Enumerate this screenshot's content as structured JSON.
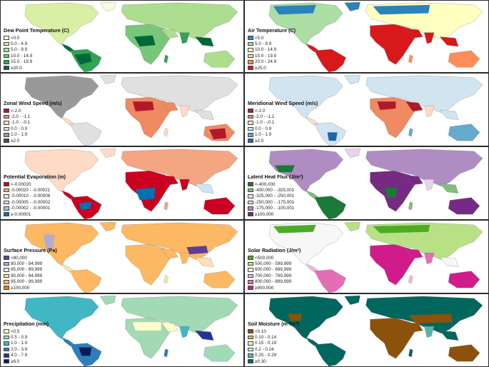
{
  "panels": [
    {
      "id": "dew-point",
      "title": "Dew Point Temperature (C)",
      "classes": [
        {
          "label": "<0.0",
          "color": "#f7fcd9"
        },
        {
          "label": "0.0 - 4.9",
          "color": "#d9efa3"
        },
        {
          "label": "5.0 - 9.9",
          "color": "#addd8e"
        },
        {
          "label": "10.0 - 14.9",
          "color": "#78c679"
        },
        {
          "label": "15.0 - 19.9",
          "color": "#31a354"
        },
        {
          "label": "≥20.0",
          "color": "#006837"
        }
      ]
    },
    {
      "id": "air-temperature",
      "title": "Air Temperature (C)",
      "classes": [
        {
          "label": "<5.0",
          "color": "#2b83ba"
        },
        {
          "label": "5.0 - 9.9",
          "color": "#abdda4"
        },
        {
          "label": "10.0 - 14.9",
          "color": "#ffffbf"
        },
        {
          "label": "15.0 - 19.9",
          "color": "#fee08b"
        },
        {
          "label": "20.0 - 24.9",
          "color": "#fc8d59"
        },
        {
          "label": "≥25.0",
          "color": "#d7191c"
        }
      ]
    },
    {
      "id": "zonal-wind",
      "title": "Zonal Wind Speed (m/s)",
      "classes": [
        {
          "label": "<-2.0",
          "color": "#b2182b"
        },
        {
          "label": "-2.0 - -1.1",
          "color": "#ef8a62"
        },
        {
          "label": "-1.0 - -0.1",
          "color": "#fddbc7"
        },
        {
          "label": "0.0 - 0.9",
          "color": "#e0e0e0"
        },
        {
          "label": "1.0 - 1.9",
          "color": "#999999"
        },
        {
          "label": "≥2.0",
          "color": "#4d4d4d"
        }
      ]
    },
    {
      "id": "meridional-wind",
      "title": "Meridional Wind Speed (m/s)",
      "classes": [
        {
          "label": "<-2.0",
          "color": "#b2182b"
        },
        {
          "label": "-2.0 - -1.1",
          "color": "#ef8a62"
        },
        {
          "label": "-1.0 - -0.1",
          "color": "#fddbc7"
        },
        {
          "label": "0.0 - 0.9",
          "color": "#d1e5f0"
        },
        {
          "label": "1.0 - 1.9",
          "color": "#67a9cf"
        },
        {
          "label": "≥2.0",
          "color": "#2166ac"
        }
      ]
    },
    {
      "id": "potential-evaporation",
      "title": "Potential Evaporation (m)",
      "classes": [
        {
          "label": "<-0.00020",
          "color": "#ca0020"
        },
        {
          "label": "-0.00020 - -0.00021",
          "color": "#f4a582"
        },
        {
          "label": "-0.00010 - -0.00006",
          "color": "#fddbc7"
        },
        {
          "label": "-0.00005 - -0.00002",
          "color": "#d1e5f0"
        },
        {
          "label": "-0.00002 - -0.00001",
          "color": "#92c5de"
        },
        {
          "label": "≥-0.00001",
          "color": "#0571b0"
        }
      ]
    },
    {
      "id": "latent-heat-flux",
      "title": "Latent Heat Flux (J/m²)",
      "classes": [
        {
          "label": "<-400,000",
          "color": "#1b7837"
        },
        {
          "label": "-400,000 - -325,001",
          "color": "#7fbf7b"
        },
        {
          "label": "-325,000 - -250,001",
          "color": "#d9f0d3"
        },
        {
          "label": "-250,000 - -175,001",
          "color": "#e7d4e8"
        },
        {
          "label": "-175,000 - -100,001",
          "color": "#af8dc3"
        },
        {
          "label": "≥100,000",
          "color": "#762a83"
        }
      ]
    },
    {
      "id": "surface-pressure",
      "title": "Surface Pressure (Pa)",
      "classes": [
        {
          "label": "<80,000",
          "color": "#5e3c99"
        },
        {
          "label": "80,000 - 84,999",
          "color": "#b2abd2"
        },
        {
          "label": "85,000 - 89,999",
          "color": "#e8e4f2"
        },
        {
          "label": "90,000 - 94,999",
          "color": "#fee0b6"
        },
        {
          "label": "95,000 - 99,999",
          "color": "#fdb863"
        },
        {
          "label": "≥100,000",
          "color": "#e08214"
        }
      ]
    },
    {
      "id": "solar-radiation",
      "title": "Solar Radiation (J/m²)",
      "classes": [
        {
          "label": "<500,000",
          "color": "#4dac26"
        },
        {
          "label": "500,000 - 599,999",
          "color": "#b8e186"
        },
        {
          "label": "600,000 - 699,999",
          "color": "#f7f7f7"
        },
        {
          "label": "700,000 - 799,999",
          "color": "#f1b6da"
        },
        {
          "label": "800,000 - 899,999",
          "color": "#e36eb4"
        },
        {
          "label": "≥900,000",
          "color": "#d01c8b"
        }
      ]
    },
    {
      "id": "precipitation",
      "title": "Precipitation (mm)",
      "classes": [
        {
          "label": "<0.5",
          "color": "#ffffcc"
        },
        {
          "label": "0.5 - 0.9",
          "color": "#a1dab4"
        },
        {
          "label": "1.0 - 1.9",
          "color": "#41b6c4"
        },
        {
          "label": "2.0 - 3.9",
          "color": "#2c7fb8"
        },
        {
          "label": "4.0 - 7.9",
          "color": "#253494"
        },
        {
          "label": "≥8.0",
          "color": "#081d58"
        }
      ]
    },
    {
      "id": "soil-moisture",
      "title": "Soil Moisture (m³/m³)",
      "classes": [
        {
          "label": "<0.10",
          "color": "#8c510a"
        },
        {
          "label": "0.10 - 0.14",
          "color": "#d8b365"
        },
        {
          "label": "0.15 - 0.19",
          "color": "#f6e8c3"
        },
        {
          "label": "0.2 - 0.24",
          "color": "#c7eae5"
        },
        {
          "label": "0.25 - 0.29",
          "color": "#5ab4ac"
        },
        {
          "label": "≥0.30",
          "color": "#01665e"
        }
      ]
    }
  ]
}
